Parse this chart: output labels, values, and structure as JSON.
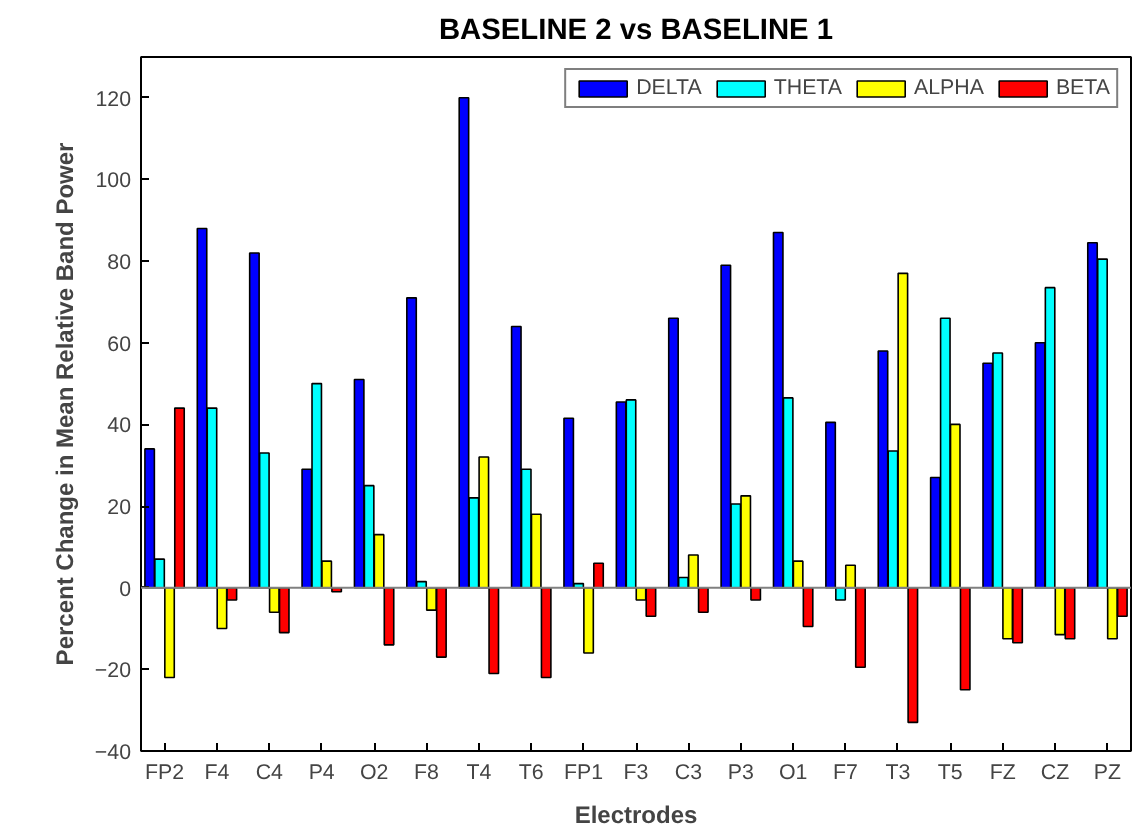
{
  "chart_data": {
    "type": "bar",
    "title": "BASELINE 2 vs BASELINE 1",
    "xlabel": "Electrodes",
    "ylabel": "Percent Change in Mean Relative Band Power",
    "categories": [
      "FP2",
      "F4",
      "C4",
      "P4",
      "O2",
      "F8",
      "T4",
      "T6",
      "FP1",
      "F3",
      "C3",
      "P3",
      "O1",
      "F7",
      "T3",
      "T5",
      "FZ",
      "CZ",
      "PZ"
    ],
    "series": [
      {
        "name": "DELTA",
        "color": "#0000ff",
        "values": [
          34,
          88,
          82,
          29,
          51,
          71,
          120,
          64,
          41.5,
          45.5,
          66,
          79,
          87,
          40.5,
          58,
          27,
          55,
          60,
          84.5
        ]
      },
      {
        "name": "THETA",
        "color": "#00ffff",
        "values": [
          7,
          44,
          33,
          50,
          25,
          1.5,
          22,
          29,
          1,
          46,
          2.5,
          20.5,
          46.5,
          -3,
          33.5,
          66,
          57.5,
          73.5,
          80.5
        ]
      },
      {
        "name": "ALPHA",
        "color": "#ffff00",
        "values": [
          -22,
          -10,
          -6,
          6.5,
          13,
          -5.5,
          32,
          18,
          -16,
          -3,
          8,
          22.5,
          6.5,
          5.5,
          77,
          40,
          -12.5,
          -11.5,
          -12.5
        ]
      },
      {
        "name": "BETA",
        "color": "#ff0000",
        "values": [
          44,
          -3,
          -11,
          -1,
          -14,
          -17,
          -21,
          -22,
          6,
          -7,
          -6,
          -3,
          -9.5,
          -19.5,
          -33,
          -25,
          -13.5,
          -12.5,
          -7
        ]
      }
    ],
    "ylim": [
      -40,
      130
    ],
    "yticks": [
      -40,
      -20,
      0,
      20,
      40,
      60,
      80,
      100,
      120
    ],
    "grid": false,
    "legend": "top right",
    "ref_lines": [
      {
        "axis": "y",
        "value": 0,
        "color": "#808080"
      }
    ]
  }
}
